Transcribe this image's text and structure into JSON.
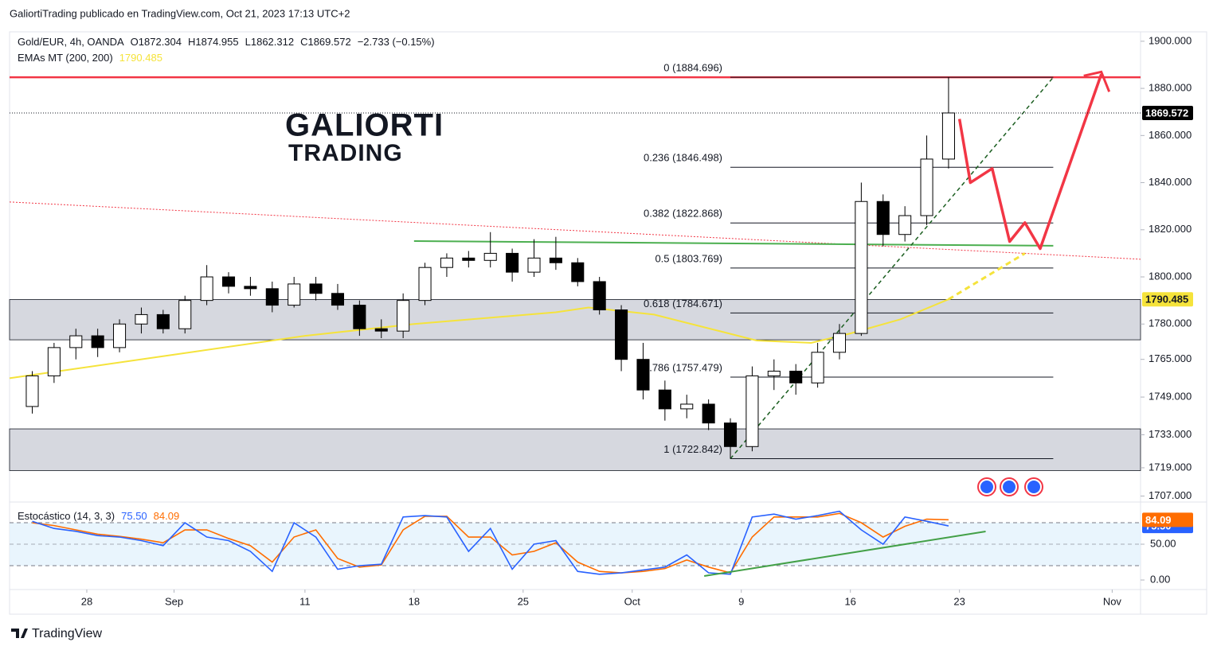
{
  "header": "GaliortiTrading publicado en TradingView.com, Oct 21, 2023 17:13 UTC+2",
  "logo": [
    "GALIORTI",
    "TRADING"
  ],
  "footer": "TradingView",
  "chart_data": [
    {
      "type": "candlestick",
      "title": "Gold/EUR, 4h, OANDA",
      "quote": [
        "O1872.304",
        "H1874.955",
        "L1862.312",
        "C1869.572",
        "−2.733 (−0.15%)"
      ],
      "up_color": "#ffffff",
      "down_color": "#000000",
      "x": [
        -2.5,
        -1.5,
        -0.5,
        0.5,
        1.5,
        2.5,
        3.5,
        4.5,
        5.5,
        6.5,
        7.5,
        8.5,
        9.5,
        10.5,
        11.5,
        12.5,
        13.5,
        14.5,
        15.5,
        16.5,
        17.5,
        18.5,
        19.5,
        20.5,
        21.5,
        22.5,
        23.5,
        24.5,
        25.5,
        26.5,
        27.5,
        28.5,
        29.5,
        30.5,
        31.5,
        32.5,
        33.5,
        34.5,
        35.5,
        36.5,
        37.5,
        38.5,
        39.5
      ],
      "open": [
        1745,
        1758,
        1770,
        1775,
        1770,
        1780,
        1784,
        1778,
        1790,
        1800,
        1796,
        1795,
        1788,
        1797,
        1793,
        1788,
        1778,
        1777,
        1790,
        1804,
        1808,
        1807,
        1810,
        1802,
        1808,
        1806,
        1798,
        1786,
        1765,
        1752,
        1744,
        1746,
        1738,
        1728,
        1758,
        1760,
        1755,
        1768,
        1776,
        1832,
        1818,
        1826,
        1850
      ],
      "high": [
        1760,
        1772,
        1778,
        1778,
        1782,
        1787,
        1786,
        1792,
        1805,
        1802,
        1800,
        1798,
        1800,
        1800,
        1797,
        1790,
        1782,
        1793,
        1806,
        1810,
        1811,
        1819,
        1812,
        1816,
        1817,
        1808,
        1800,
        1788,
        1772,
        1756,
        1750,
        1748,
        1740,
        1762,
        1765,
        1763,
        1772,
        1780,
        1840,
        1835,
        1830,
        1860,
        1884.7
      ],
      "low": [
        1742,
        1755,
        1765,
        1766,
        1768,
        1776,
        1776,
        1776,
        1788,
        1793,
        1792,
        1785,
        1787,
        1790,
        1786,
        1775,
        1774,
        1774,
        1788,
        1800,
        1804,
        1804,
        1798,
        1800,
        1803,
        1796,
        1784,
        1760,
        1748,
        1739,
        1740,
        1735,
        1722.8,
        1726,
        1752,
        1750,
        1753,
        1765,
        1775,
        1813,
        1815,
        1822,
        1846
      ],
      "close": [
        1758,
        1770,
        1775,
        1770,
        1780,
        1784,
        1778,
        1790,
        1800,
        1796,
        1795,
        1788,
        1797,
        1793,
        1788,
        1778,
        1777,
        1790,
        1804,
        1808,
        1807,
        1810,
        1802,
        1808,
        1806,
        1798,
        1786,
        1765,
        1752,
        1744,
        1746,
        1738,
        1728,
        1758,
        1760,
        1755,
        1768,
        1776,
        1832,
        1818,
        1826,
        1850,
        1869.572
      ],
      "last_price": {
        "value": 1869.572,
        "label": "1869.572"
      },
      "indicator": {
        "name": "EMAs MT (200, 200)",
        "value": 1790.485,
        "label": "1790.485",
        "color": "#f5e33b",
        "x": [
          -3.54,
          4,
          10,
          15,
          21.5,
          23,
          26,
          29,
          30.7,
          33.2,
          35,
          37.3,
          39.5
        ],
        "values": [
          1757,
          1767,
          1775,
          1780,
          1785,
          1787,
          1784,
          1777,
          1773,
          1772,
          1776,
          1782,
          1790.485
        ],
        "projection_x": [
          39.5,
          43
        ],
        "projection_values": [
          1790.485,
          1810
        ]
      },
      "fib": {
        "x": [
          29.5,
          44.3
        ],
        "color": "#131722",
        "levels": [
          {
            "label": "0 (1884.696)",
            "value": 1884.696
          },
          {
            "label": "0.236 (1846.498)",
            "value": 1846.498
          },
          {
            "label": "0.382 (1822.868)",
            "value": 1822.868
          },
          {
            "label": "0.5 (1803.769)",
            "value": 1803.769
          },
          {
            "label": "0.618 (1784.671)",
            "value": 1784.671
          },
          {
            "label": "0.786 (1757.479)",
            "value": 1757.479
          },
          {
            "label": "1 (1722.842)",
            "value": 1722.842
          }
        ]
      },
      "resistance": {
        "value": 1884.696,
        "color": "#f23645"
      },
      "zones": [
        [
          1773.3,
          1790.4
        ],
        [
          1717.8,
          1735.5
        ]
      ],
      "downtrend": {
        "x": [
          -3.54,
          48.3
        ],
        "values": [
          1831.8,
          1807.5
        ],
        "color": "#f23645"
      },
      "support": {
        "x": [
          15,
          44.3
        ],
        "values": [
          1815.2,
          1813.2
        ],
        "color": "#4caf50"
      },
      "uptrend": {
        "x": [
          29.5,
          44.3
        ],
        "values": [
          1722.842,
          1884.696
        ],
        "color": "#1b5e20"
      },
      "projection": {
        "x": [
          40,
          40.5,
          41.5,
          42.3,
          43,
          43.7,
          46.5
        ],
        "values": [
          1867,
          1840,
          1846,
          1815,
          1823,
          1812,
          1886
        ],
        "color": "#f23645"
      },
      "xlim": [
        -3.54,
        48.3
      ],
      "ylim": [
        1704.8,
        1904
      ],
      "yticks": [
        {
          "value": 1900,
          "label": "1900.000"
        },
        {
          "value": 1880,
          "label": "1880.000"
        },
        {
          "value": 1860,
          "label": "1860.000"
        },
        {
          "value": 1840,
          "label": "1840.000"
        },
        {
          "value": 1820,
          "label": "1820.000"
        },
        {
          "value": 1800,
          "label": "1800.000"
        },
        {
          "value": 1780,
          "label": "1780.000"
        },
        {
          "value": 1765,
          "label": "1765.000"
        },
        {
          "value": 1749,
          "label": "1749.000"
        },
        {
          "value": 1733,
          "label": "1733.000"
        },
        {
          "value": 1719,
          "label": "1719.000"
        },
        {
          "value": 1707,
          "label": "1707.000"
        }
      ],
      "xticks": [
        {
          "value": 0,
          "label": "28"
        },
        {
          "value": 4,
          "label": "Sep"
        },
        {
          "value": 10,
          "label": "11"
        },
        {
          "value": 15,
          "label": "18"
        },
        {
          "value": 20,
          "label": "25"
        },
        {
          "value": 25,
          "label": "Oct"
        },
        {
          "value": 30,
          "label": "9"
        },
        {
          "value": 35,
          "label": "16"
        },
        {
          "value": 40,
          "label": "23"
        },
        {
          "value": 47,
          "label": "Nov"
        }
      ]
    },
    {
      "type": "stochastic",
      "title": "Estocástico (14, 3, 3)",
      "x": [
        -2.5,
        -1.5,
        -0.5,
        0.5,
        1.5,
        2.5,
        3.5,
        4.5,
        5.5,
        6.5,
        7.5,
        8.5,
        9.5,
        10.5,
        11.5,
        12.5,
        13.5,
        14.5,
        15.5,
        16.5,
        17.5,
        18.5,
        19.5,
        20.5,
        21.5,
        22.5,
        23.5,
        24.5,
        25.5,
        26.5,
        27.5,
        28.5,
        29.5,
        30.5,
        31.5,
        32.5,
        33.5,
        34.5,
        35.5,
        36.5,
        37.5,
        38.5,
        39.5
      ],
      "series": [
        {
          "color": "#2962ff",
          "value_label": "75.50",
          "values": [
            82,
            72,
            68,
            62,
            60,
            55,
            48,
            80,
            60,
            55,
            40,
            12,
            80,
            60,
            15,
            20,
            22,
            88,
            90,
            88,
            40,
            72,
            15,
            50,
            55,
            12,
            8,
            10,
            14,
            18,
            35,
            10,
            8,
            88,
            92,
            85,
            90,
            96,
            70,
            50,
            88,
            82,
            75.5
          ]
        },
        {
          "color": "#ff6d00",
          "value_label": "84.09",
          "values": [
            80,
            76,
            70,
            64,
            61,
            57,
            52,
            70,
            70,
            58,
            48,
            25,
            60,
            70,
            30,
            18,
            21,
            70,
            89,
            89,
            60,
            60,
            35,
            40,
            52,
            25,
            12,
            10,
            12,
            16,
            28,
            18,
            10,
            60,
            88,
            88,
            88,
            93,
            80,
            60,
            75,
            85,
            84.09
          ]
        }
      ],
      "bands": [
        20,
        80
      ],
      "trendline": {
        "x": [
          28.3,
          41.2
        ],
        "values": [
          5.6,
          67.8
        ],
        "color": "#43a047"
      },
      "xlim": [
        -3.54,
        48.3
      ],
      "ylim": [
        -12.2,
        107.8
      ],
      "yticks": [
        {
          "value": 50,
          "label": "50.00"
        },
        {
          "value": 0,
          "label": "0.00"
        }
      ]
    }
  ]
}
